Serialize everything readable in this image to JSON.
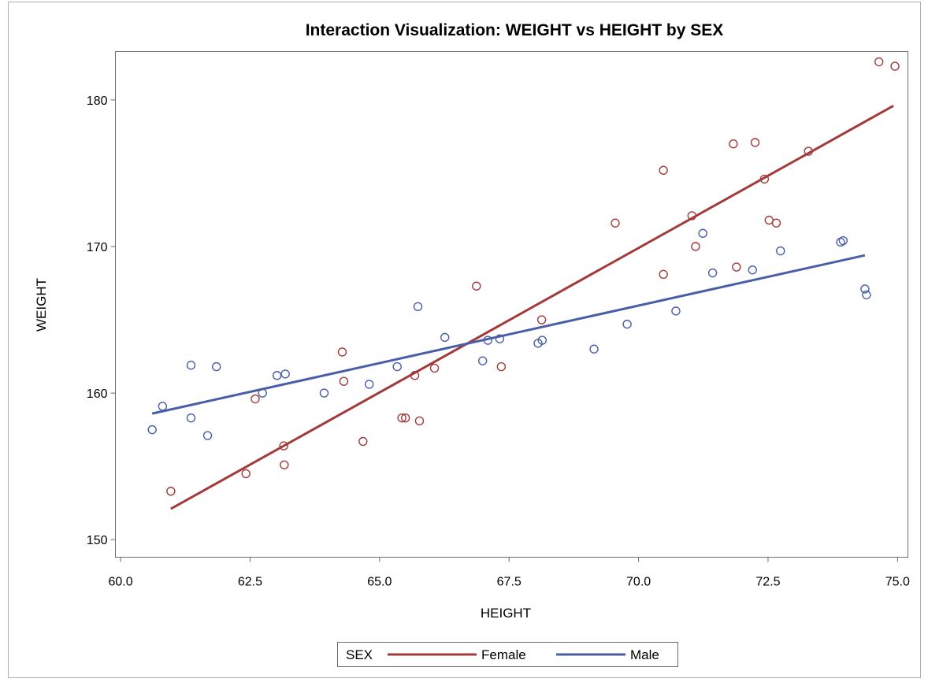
{
  "chart_data": {
    "type": "scatter",
    "title": "Interaction Visualization: WEIGHT vs HEIGHT by SEX",
    "xlabel": "HEIGHT",
    "ylabel": "WEIGHT",
    "xlim": [
      59.9,
      75.2
    ],
    "ylim": [
      148.8,
      183.3
    ],
    "x_ticks": [
      "60.0",
      "62.5",
      "65.0",
      "67.5",
      "70.0",
      "72.5",
      "75.0"
    ],
    "y_ticks": [
      "150",
      "160",
      "170",
      "180"
    ],
    "grid": false,
    "legend": {
      "title": "SEX",
      "placement": "bottom",
      "entries": [
        "Female",
        "Male"
      ]
    },
    "series": [
      {
        "name": "Female",
        "color": "#a23a3a",
        "points": [
          [
            60.97,
            153.3
          ],
          [
            62.42,
            154.5
          ],
          [
            62.6,
            159.6
          ],
          [
            63.15,
            156.4
          ],
          [
            63.16,
            155.1
          ],
          [
            64.28,
            162.8
          ],
          [
            64.31,
            160.8
          ],
          [
            64.68,
            156.7
          ],
          [
            65.43,
            158.3
          ],
          [
            65.5,
            158.3
          ],
          [
            65.68,
            161.2
          ],
          [
            65.77,
            158.1
          ],
          [
            66.06,
            161.7
          ],
          [
            66.87,
            167.3
          ],
          [
            67.35,
            161.8
          ],
          [
            68.13,
            165.0
          ],
          [
            69.55,
            171.6
          ],
          [
            70.48,
            168.1
          ],
          [
            70.48,
            175.2
          ],
          [
            71.03,
            172.1
          ],
          [
            71.1,
            170.0
          ],
          [
            71.83,
            177.0
          ],
          [
            71.89,
            168.6
          ],
          [
            72.25,
            177.1
          ],
          [
            72.43,
            174.6
          ],
          [
            72.52,
            171.8
          ],
          [
            72.66,
            171.6
          ],
          [
            73.28,
            176.5
          ],
          [
            74.64,
            182.6
          ],
          [
            74.95,
            182.3
          ]
        ],
        "fit": {
          "x": [
            60.97,
            74.92
          ],
          "y": [
            152.1,
            179.6
          ]
        }
      },
      {
        "name": "Male",
        "color": "#4a5ea7",
        "points": [
          [
            60.61,
            157.5
          ],
          [
            60.81,
            159.1
          ],
          [
            61.36,
            158.3
          ],
          [
            61.36,
            161.9
          ],
          [
            61.68,
            157.1
          ],
          [
            61.85,
            161.8
          ],
          [
            62.74,
            160.0
          ],
          [
            63.02,
            161.2
          ],
          [
            63.18,
            161.3
          ],
          [
            63.93,
            160.0
          ],
          [
            64.8,
            160.6
          ],
          [
            65.34,
            161.8
          ],
          [
            65.74,
            165.9
          ],
          [
            66.26,
            163.8
          ],
          [
            66.99,
            162.2
          ],
          [
            67.09,
            163.6
          ],
          [
            67.32,
            163.7
          ],
          [
            68.06,
            163.4
          ],
          [
            68.14,
            163.6
          ],
          [
            69.14,
            163.0
          ],
          [
            69.78,
            164.7
          ],
          [
            70.72,
            165.6
          ],
          [
            71.24,
            170.9
          ],
          [
            71.43,
            168.2
          ],
          [
            72.2,
            168.4
          ],
          [
            72.74,
            169.7
          ],
          [
            73.9,
            170.3
          ],
          [
            73.95,
            170.4
          ],
          [
            74.37,
            167.1
          ],
          [
            74.4,
            166.7
          ]
        ],
        "fit": {
          "x": [
            60.61,
            74.37
          ],
          "y": [
            158.6,
            169.4
          ]
        }
      }
    ]
  }
}
